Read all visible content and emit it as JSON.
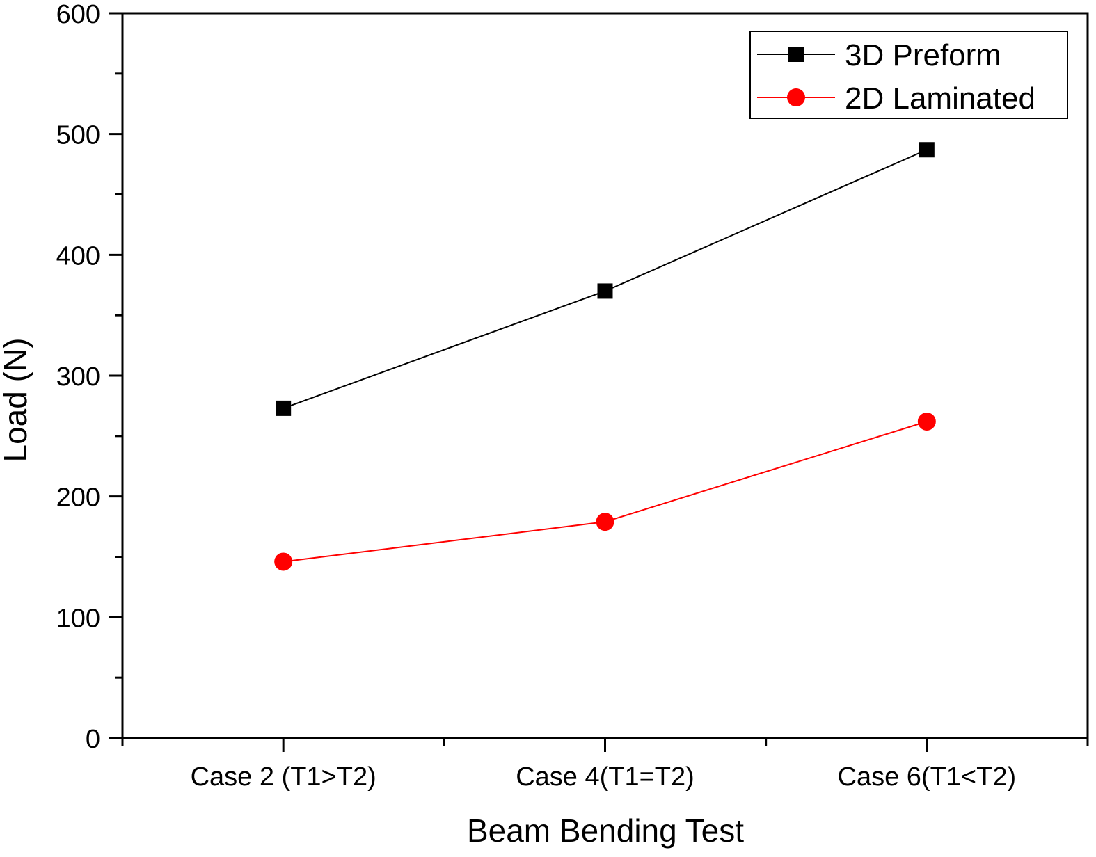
{
  "chart_data": {
    "type": "line",
    "title": "",
    "xlabel": "Beam Bending Test",
    "ylabel": "Load (N)",
    "categories": [
      "Case 2 (T1>T2)",
      "Case 4(T1=T2)",
      "Case 6(T1<T2)"
    ],
    "ylim": [
      0,
      600
    ],
    "yticks": [
      0,
      100,
      200,
      300,
      400,
      500,
      600
    ],
    "grid": false,
    "legend_position": "top-right",
    "series": [
      {
        "name": "3D Preform",
        "values": [
          273,
          370,
          487
        ],
        "color": "#000000",
        "marker": "square"
      },
      {
        "name": "2D Laminated",
        "values": [
          146,
          179,
          262
        ],
        "color": "#ff0000",
        "marker": "circle"
      }
    ]
  }
}
